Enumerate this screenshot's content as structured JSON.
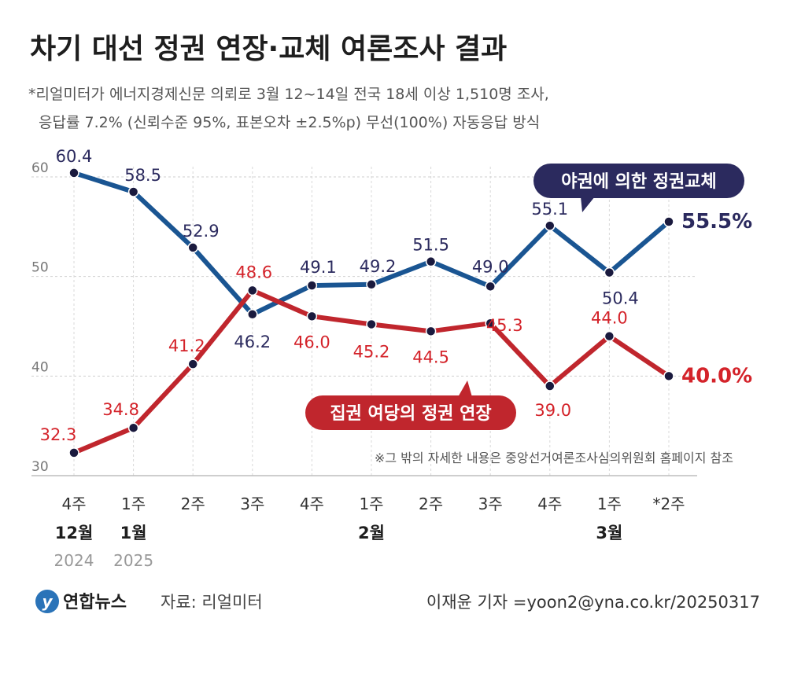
{
  "chart_data": {
    "type": "line",
    "title": "차기 대선 정권 연장·교체 여론조사 결과",
    "subtitle_lines": [
      "*리얼미터가 에너지경제신문 의뢰로 3월 12~14일 전국 18세 이상 1,510명 조사,",
      "응답률 7.2% (신뢰수준 95%, 표본오차 ±2.5%p) 무선(100%) 자동응답 방식"
    ],
    "x": [
      "4주",
      "1주",
      "2주",
      "3주",
      "4주",
      "1주",
      "2주",
      "3주",
      "4주",
      "1주",
      "*2주"
    ],
    "month_labels": [
      "12월",
      "1월",
      "",
      "",
      "",
      "2월",
      "",
      "",
      "",
      "3월",
      ""
    ],
    "year_labels": [
      "2024",
      "2025",
      "",
      "",
      "",
      "",
      "",
      "",
      "",
      "",
      ""
    ],
    "ylim": [
      30,
      60
    ],
    "y_ticks": [
      "30",
      "40",
      "50",
      "60"
    ],
    "grid": true,
    "series": [
      {
        "name": "야권에 의한 정권교체",
        "color": "#1a5592",
        "marker_color": "#1a1a3e",
        "label_color": "#2b2a5e",
        "values": [
          60.4,
          58.5,
          52.9,
          46.2,
          49.1,
          49.2,
          51.5,
          49.0,
          55.1,
          50.4,
          55.5
        ],
        "labels": [
          "60.4",
          "58.5",
          "52.9",
          "46.2",
          "49.1",
          "49.2",
          "51.5",
          "49.0",
          "55.1",
          "50.4",
          "55.5%"
        ]
      },
      {
        "name": "집권 여당의 정권 연장",
        "color": "#c0262d",
        "marker_color": "#1a1a3e",
        "label_color": "#d4232a",
        "values": [
          32.3,
          34.8,
          41.2,
          48.6,
          46.0,
          45.2,
          44.5,
          45.3,
          39.0,
          44.0,
          40.0
        ],
        "labels": [
          "32.3",
          "34.8",
          "41.2",
          "48.6",
          "46.0",
          "45.2",
          "44.5",
          "45.3",
          "39.0",
          "44.0",
          "40.0%"
        ]
      }
    ],
    "annotation": "※그 밖의 자세한 내용은 중앙선거여론조사심의위원회 홈페이지 참조"
  },
  "footer": {
    "brand": "연합뉴스",
    "source": "자료: 리얼미터",
    "credit": "이재윤 기자 =yoon2@yna.co.kr/20250317"
  }
}
